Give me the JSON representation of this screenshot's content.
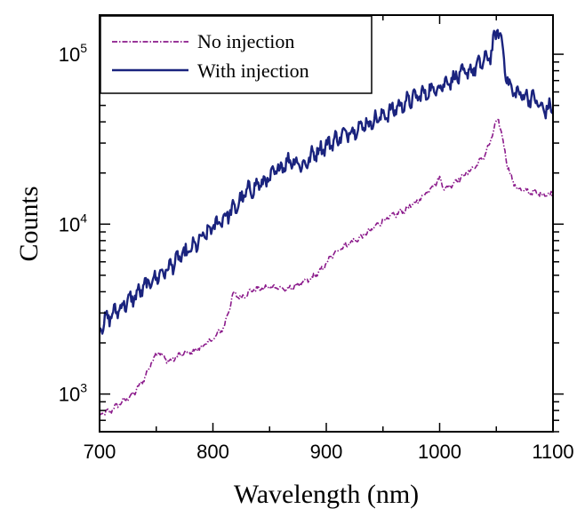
{
  "chart_data": {
    "type": "line",
    "xlabel": "Wavelength (nm)",
    "ylabel": "Counts",
    "xlim": [
      700,
      1100
    ],
    "ylim": [
      600,
      170000
    ],
    "yscale": "log",
    "grid": false,
    "legend_position": "top-left",
    "x_ticks": [
      {
        "value": 700,
        "label": "700"
      },
      {
        "value": 800,
        "label": "800"
      },
      {
        "value": 900,
        "label": "900"
      },
      {
        "value": 1000,
        "label": "1000"
      },
      {
        "value": 1100,
        "label": "1100"
      }
    ],
    "y_ticks": [
      {
        "value": 1000,
        "base": "10",
        "exp": "3"
      },
      {
        "value": 10000,
        "base": "10",
        "exp": "4"
      },
      {
        "value": 100000,
        "base": "10",
        "exp": "5"
      }
    ],
    "series": [
      {
        "name": "No injection",
        "color": "#8B1A8B",
        "style": "dash-dot",
        "points": [
          [
            700,
            750
          ],
          [
            710,
            800
          ],
          [
            720,
            900
          ],
          [
            730,
            1000
          ],
          [
            740,
            1250
          ],
          [
            748,
            1650
          ],
          [
            752,
            1800
          ],
          [
            756,
            1650
          ],
          [
            762,
            1550
          ],
          [
            770,
            1700
          ],
          [
            780,
            1750
          ],
          [
            790,
            1900
          ],
          [
            800,
            2100
          ],
          [
            810,
            2500
          ],
          [
            815,
            3300
          ],
          [
            818,
            3900
          ],
          [
            825,
            3700
          ],
          [
            835,
            4100
          ],
          [
            845,
            4200
          ],
          [
            855,
            4300
          ],
          [
            865,
            4100
          ],
          [
            875,
            4400
          ],
          [
            885,
            4700
          ],
          [
            895,
            5300
          ],
          [
            905,
            6500
          ],
          [
            912,
            7200
          ],
          [
            920,
            7700
          ],
          [
            930,
            8300
          ],
          [
            940,
            9300
          ],
          [
            950,
            10500
          ],
          [
            960,
            11300
          ],
          [
            970,
            12200
          ],
          [
            980,
            13500
          ],
          [
            990,
            15800
          ],
          [
            1000,
            18500
          ],
          [
            1005,
            16000
          ],
          [
            1012,
            17500
          ],
          [
            1022,
            19500
          ],
          [
            1032,
            22000
          ],
          [
            1040,
            25500
          ],
          [
            1045,
            31000
          ],
          [
            1050,
            40000
          ],
          [
            1052,
            41000
          ],
          [
            1055,
            33000
          ],
          [
            1060,
            22000
          ],
          [
            1065,
            17500
          ],
          [
            1070,
            16000
          ],
          [
            1080,
            15500
          ],
          [
            1090,
            15000
          ],
          [
            1100,
            15000
          ]
        ]
      },
      {
        "name": "With injection",
        "color": "#1A237E",
        "style": "solid",
        "points": [
          [
            700,
            2500
          ],
          [
            710,
            2900
          ],
          [
            720,
            3300
          ],
          [
            730,
            3700
          ],
          [
            740,
            4300
          ],
          [
            750,
            4900
          ],
          [
            758,
            5300
          ],
          [
            762,
            5600
          ],
          [
            770,
            6300
          ],
          [
            780,
            7000
          ],
          [
            790,
            8200
          ],
          [
            800,
            9600
          ],
          [
            810,
            11000
          ],
          [
            820,
            12500
          ],
          [
            830,
            15500
          ],
          [
            840,
            17000
          ],
          [
            850,
            18500
          ],
          [
            860,
            22000
          ],
          [
            870,
            24000
          ],
          [
            880,
            22000
          ],
          [
            890,
            26500
          ],
          [
            900,
            29000
          ],
          [
            910,
            32000
          ],
          [
            920,
            35000
          ],
          [
            930,
            37500
          ],
          [
            940,
            40000
          ],
          [
            950,
            43500
          ],
          [
            960,
            47500
          ],
          [
            970,
            52000
          ],
          [
            980,
            56500
          ],
          [
            990,
            60000
          ],
          [
            1000,
            65000
          ],
          [
            1010,
            71000
          ],
          [
            1020,
            76000
          ],
          [
            1030,
            82000
          ],
          [
            1040,
            92000
          ],
          [
            1045,
            100000
          ],
          [
            1050,
            135000
          ],
          [
            1052,
            140000
          ],
          [
            1055,
            115000
          ],
          [
            1060,
            68000
          ],
          [
            1065,
            60000
          ],
          [
            1075,
            57000
          ],
          [
            1085,
            54000
          ],
          [
            1090,
            47000
          ],
          [
            1095,
            48000
          ],
          [
            1100,
            48000
          ]
        ]
      }
    ]
  }
}
